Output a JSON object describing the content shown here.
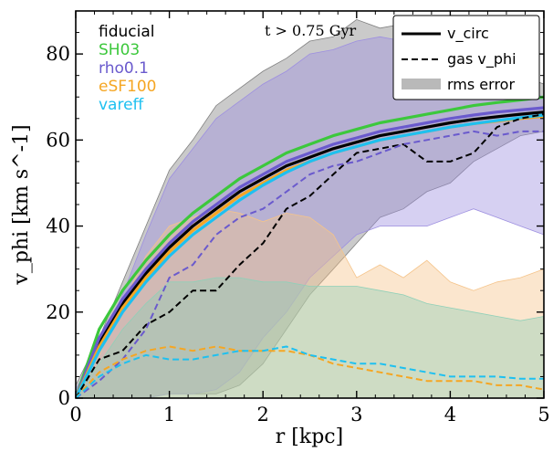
{
  "chart_data": {
    "type": "line",
    "annotation": "t > 0.75 Gyr",
    "xlabel": "r [kpc]",
    "ylabel": "v_phi [km s^-1]",
    "xlim": [
      0,
      5
    ],
    "ylim": [
      0,
      90
    ],
    "x_ticks": [
      "0",
      "1",
      "2",
      "3",
      "4",
      "5"
    ],
    "y_ticks": [
      "0",
      "20",
      "40",
      "60",
      "80"
    ],
    "sim_labels": [
      {
        "name": "fiducial",
        "color": "#000000"
      },
      {
        "name": "SH03",
        "color": "#3cc83c"
      },
      {
        "name": "rho0.1",
        "color": "#6a5acd"
      },
      {
        "name": "eSF100",
        "color": "#f5a623"
      },
      {
        "name": "vareff",
        "color": "#1ec0f0"
      }
    ],
    "legend": {
      "position": "top-right",
      "entries": [
        {
          "label": "v_circ",
          "style": "solid"
        },
        {
          "label": "gas v_phi",
          "style": "dashed"
        },
        {
          "label": "rms error",
          "style": "band"
        }
      ]
    },
    "x": [
      0,
      0.25,
      0.5,
      0.75,
      1.0,
      1.25,
      1.5,
      1.75,
      2.0,
      2.25,
      2.5,
      2.75,
      3.0,
      3.25,
      3.5,
      3.75,
      4.0,
      4.25,
      4.5,
      4.75,
      5.0
    ],
    "series": [
      {
        "name": "fiducial",
        "kind": "vcirc",
        "color": "#000000",
        "values": [
          0,
          13,
          22,
          29,
          35,
          40,
          44,
          48,
          51,
          54,
          56,
          58,
          59.5,
          61,
          62,
          63,
          64,
          64.8,
          65.4,
          66,
          66.5
        ]
      },
      {
        "name": "SH03",
        "kind": "vcirc",
        "color": "#3cc83c",
        "values": [
          0,
          16,
          25,
          32,
          38,
          43,
          47,
          51,
          54,
          57,
          59,
          61,
          62.5,
          64,
          65,
          66,
          67,
          68,
          68.7,
          69.3,
          70
        ]
      },
      {
        "name": "rho0.1",
        "kind": "vcirc",
        "color": "#6a5acd",
        "values": [
          0,
          14,
          23,
          30,
          36,
          41,
          45,
          49,
          52,
          55,
          57,
          59,
          60.5,
          62,
          63,
          64,
          65,
          65.8,
          66.5,
          67,
          67.5
        ]
      },
      {
        "name": "eSF100",
        "kind": "vcirc",
        "color": "#f5a623",
        "values": [
          0,
          12,
          21,
          28,
          34,
          39,
          43,
          47,
          50,
          53,
          55,
          57,
          58.5,
          60,
          61,
          62,
          63,
          63.8,
          64.4,
          65,
          65.5
        ]
      },
      {
        "name": "vareff",
        "kind": "vcirc",
        "color": "#1ec0f0",
        "values": [
          0,
          11,
          20,
          27,
          33,
          38,
          42,
          46,
          49.5,
          52.5,
          55,
          57,
          58.5,
          60,
          61,
          62,
          63,
          63.8,
          64.5,
          65.2,
          65.8
        ]
      },
      {
        "name": "fiducial",
        "kind": "gas",
        "color": "#000000",
        "values": [
          0,
          9,
          11,
          17,
          20,
          25,
          25,
          31,
          36,
          44,
          47,
          52,
          57,
          58,
          59,
          55,
          55,
          57,
          63,
          65,
          66
        ]
      },
      {
        "name": "rho0.1",
        "kind": "gas",
        "color": "#6a5acd",
        "values": [
          0,
          4,
          9,
          16,
          28,
          31,
          38,
          42,
          44,
          48,
          52,
          54,
          55,
          57,
          59,
          60,
          61,
          62,
          61,
          62,
          62
        ]
      },
      {
        "name": "eSF100",
        "kind": "gas",
        "color": "#f5a623",
        "values": [
          0,
          6,
          9,
          11,
          12,
          11,
          12,
          11,
          11,
          11,
          10,
          8,
          7,
          6,
          5,
          4,
          4,
          4,
          3,
          3,
          2
        ]
      },
      {
        "name": "vareff",
        "kind": "gas",
        "color": "#1ec0f0",
        "values": [
          0,
          5,
          8,
          10,
          9,
          9,
          10,
          11,
          11,
          12,
          10,
          9,
          8,
          8,
          7,
          6,
          5,
          5,
          5,
          4.5,
          4.5
        ]
      }
    ],
    "bands": [
      {
        "name": "fiducial",
        "color": "#808080",
        "upper": [
          3,
          14,
          27,
          40,
          53,
          60,
          68,
          72,
          76,
          79,
          83,
          84,
          88,
          86,
          87,
          86,
          85,
          86,
          80,
          75,
          73
        ],
        "lower": [
          0,
          0,
          0,
          0,
          1,
          1,
          1,
          3,
          8,
          16,
          24,
          30,
          36,
          42,
          44,
          48,
          50,
          55,
          58,
          61,
          62
        ]
      },
      {
        "name": "rho0.1",
        "color": "#9d8fe0",
        "upper": [
          2,
          12,
          24,
          38,
          51,
          58,
          65,
          69,
          73,
          76,
          80,
          81,
          83,
          84,
          83,
          82,
          80,
          78,
          76,
          72,
          70
        ],
        "lower": [
          0,
          0,
          0,
          0,
          1,
          1,
          2,
          6,
          14,
          20,
          28,
          33,
          38,
          40,
          40,
          40,
          42,
          44,
          42,
          40,
          38
        ]
      },
      {
        "name": "eSF100",
        "color": "#f5c48a",
        "upper": [
          1,
          10,
          22,
          33,
          40,
          42,
          44,
          43,
          41,
          43,
          42,
          38,
          28,
          31,
          28,
          32,
          27,
          25,
          27,
          28,
          30
        ],
        "lower": [
          0,
          0,
          0,
          0,
          0,
          0,
          0,
          0,
          0,
          0,
          0,
          0,
          0,
          0,
          0,
          0,
          0,
          0,
          0,
          0,
          0
        ]
      },
      {
        "name": "vareff",
        "color": "#8fd0b8",
        "upper": [
          1,
          8,
          16,
          22,
          27,
          27,
          28,
          28,
          27,
          27,
          26,
          26,
          26,
          25,
          24,
          22,
          21,
          20,
          19,
          18,
          19
        ],
        "lower": [
          0,
          0,
          0,
          0,
          0,
          0,
          0,
          0,
          0,
          0,
          0,
          0,
          0,
          0,
          0,
          0,
          0,
          0,
          0,
          0,
          0
        ]
      }
    ]
  }
}
